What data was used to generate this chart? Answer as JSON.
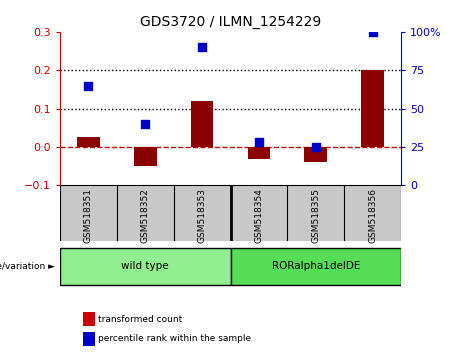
{
  "title": "GDS3720 / ILMN_1254229",
  "samples": [
    "GSM518351",
    "GSM518352",
    "GSM518353",
    "GSM518354",
    "GSM518355",
    "GSM518356"
  ],
  "transformed_count": [
    0.025,
    -0.05,
    0.12,
    -0.03,
    -0.04,
    0.2
  ],
  "percentile_rank": [
    65,
    40,
    90,
    28,
    25,
    100
  ],
  "bar_color": "#8B0000",
  "dot_color": "#0000CD",
  "ylim_left": [
    -0.1,
    0.3
  ],
  "ylim_right": [
    0,
    100
  ],
  "yticks_left": [
    -0.1,
    0.0,
    0.1,
    0.2,
    0.3
  ],
  "yticks_right": [
    0,
    25,
    50,
    75,
    100
  ],
  "yticklabels_right": [
    "0",
    "25",
    "50",
    "75",
    "100%"
  ],
  "hlines": [
    0.0,
    0.1,
    0.2
  ],
  "hline_colors": [
    "#CC0000",
    "black",
    "black"
  ],
  "hline_styles": [
    "--",
    ":",
    ":"
  ],
  "groups": [
    {
      "label": "wild type",
      "samples": [
        0,
        1,
        2
      ],
      "color": "#90EE90"
    },
    {
      "label": "RORalpha1delDE",
      "samples": [
        3,
        4,
        5
      ],
      "color": "#55DD55"
    }
  ],
  "legend_items": [
    {
      "label": "transformed count",
      "color": "#CC0000"
    },
    {
      "label": "percentile rank within the sample",
      "color": "#0000CD"
    }
  ],
  "background_color": "#FFFFFF",
  "plot_bg_color": "#FFFFFF",
  "tick_area_color": "#C8C8C8"
}
